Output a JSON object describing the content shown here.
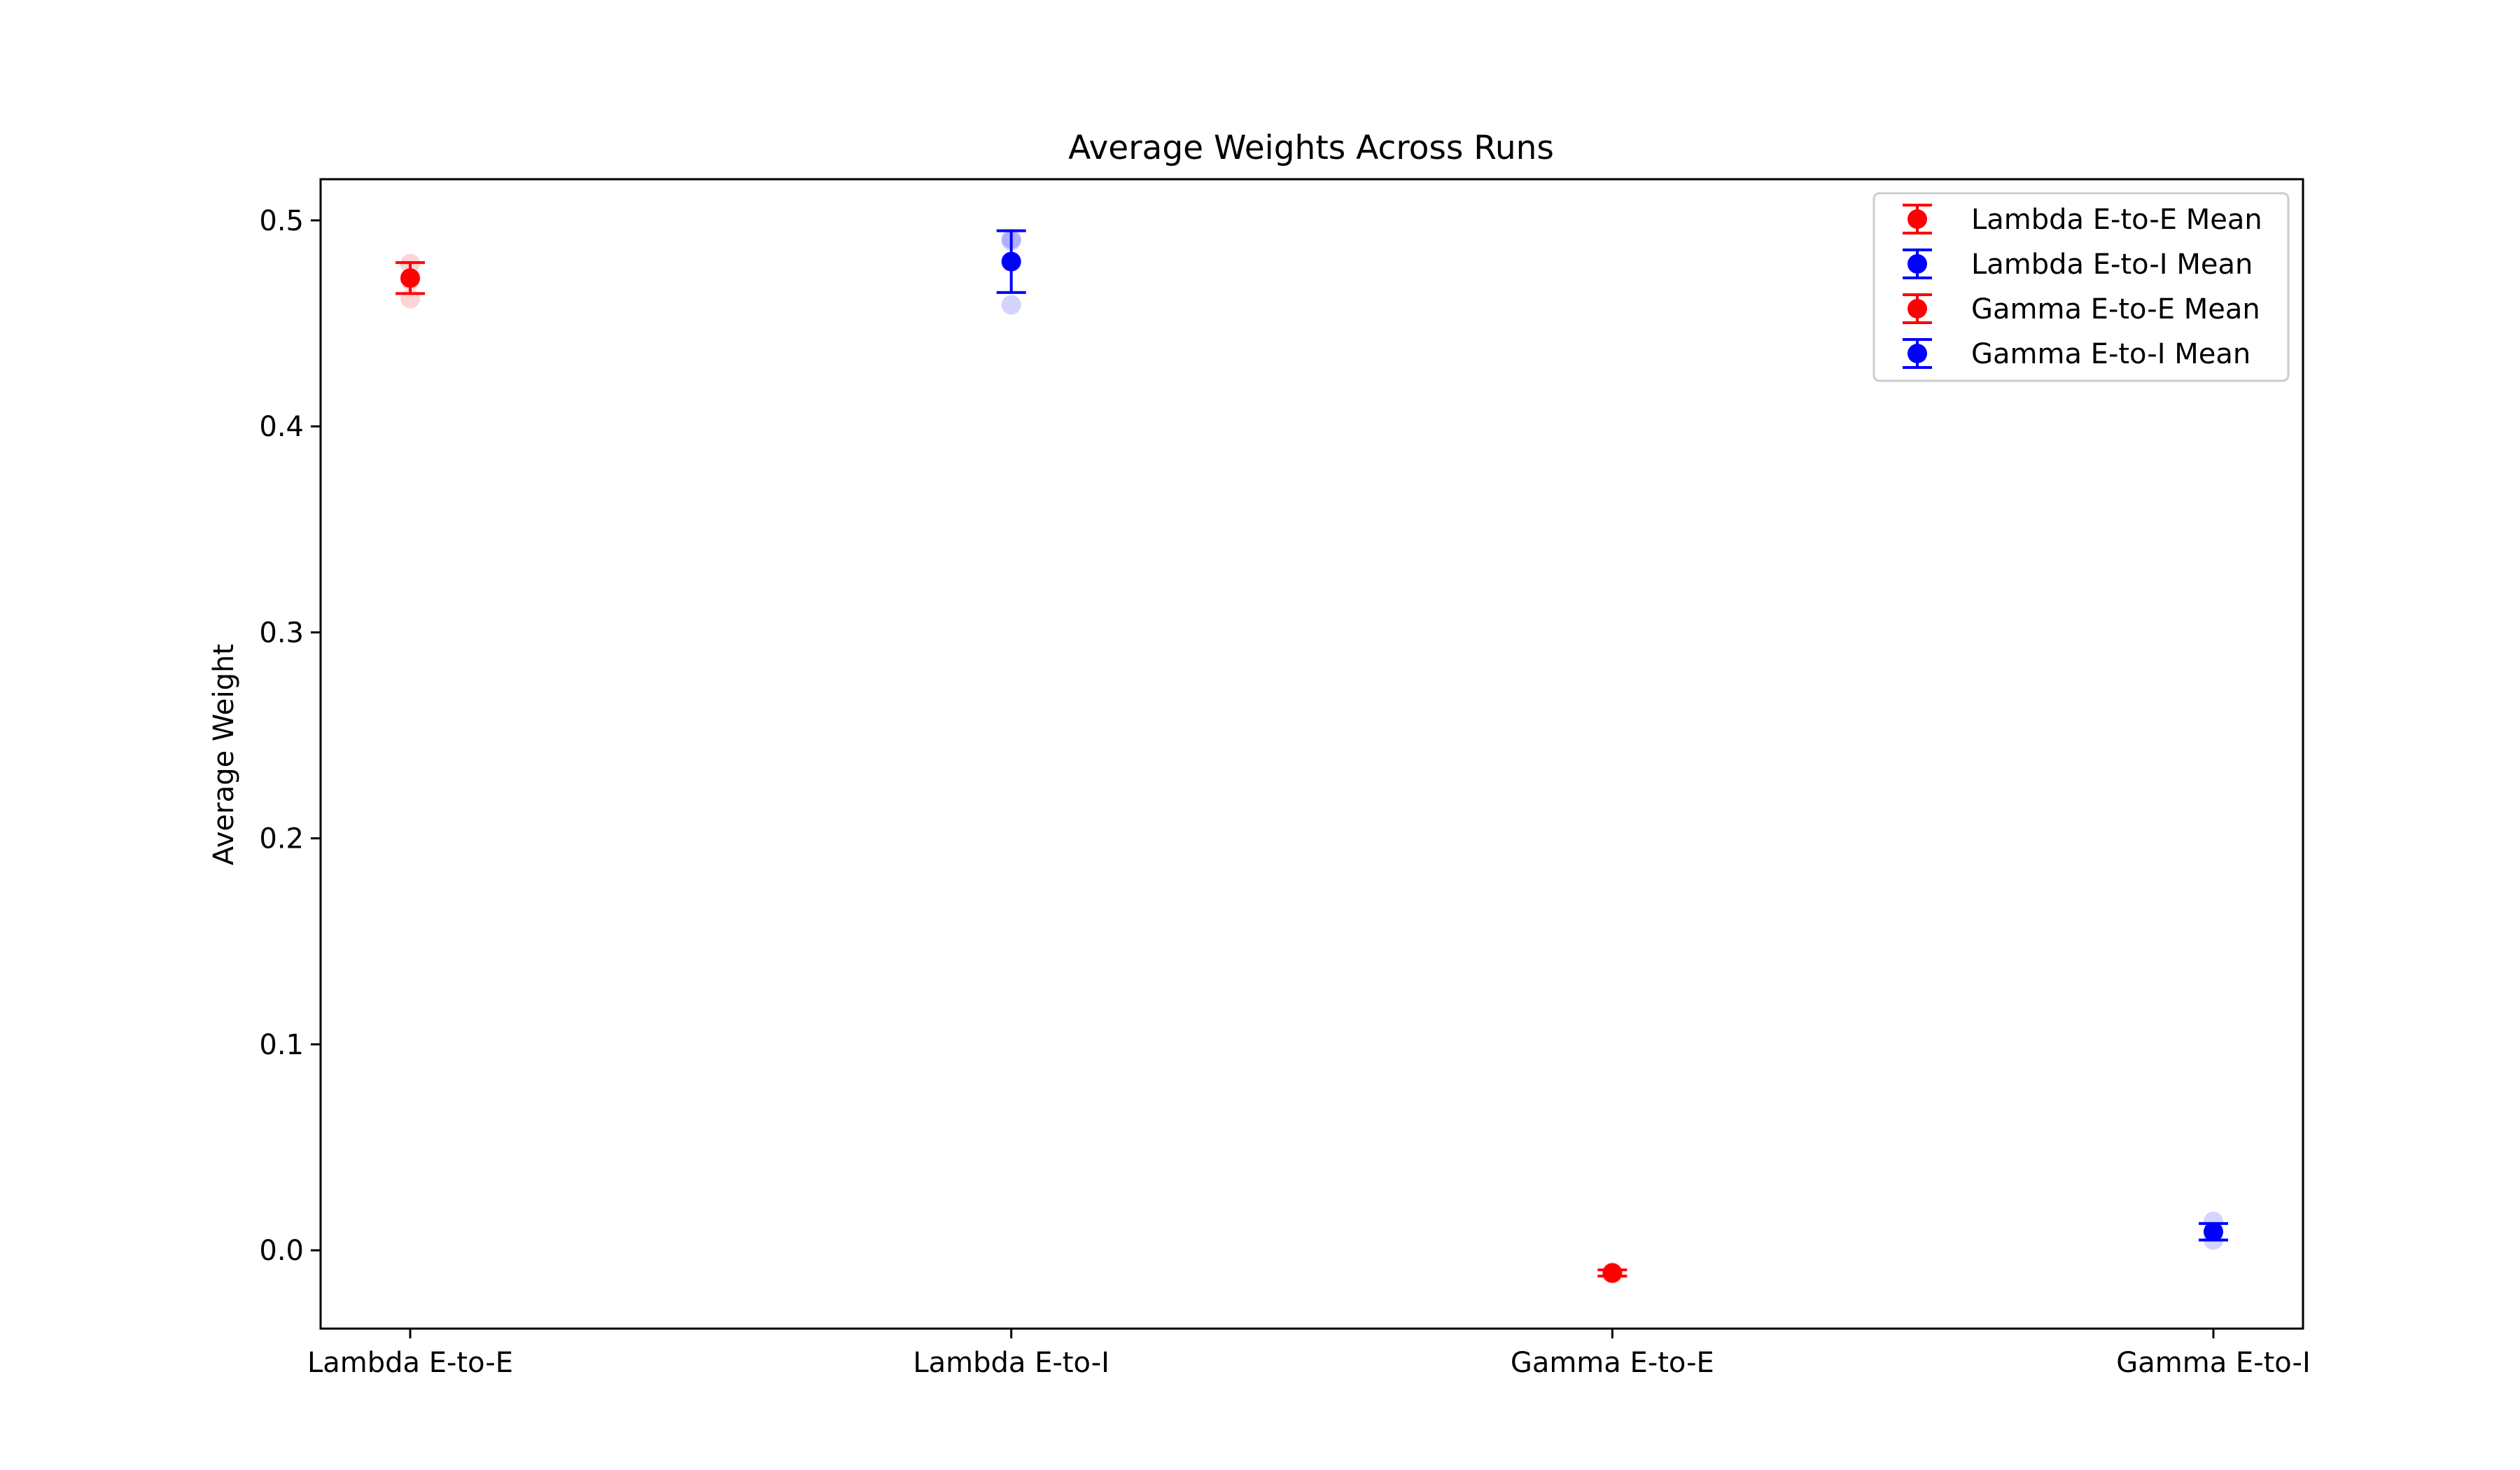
{
  "chart_data": {
    "type": "scatter",
    "title": "Average Weights Across Runs",
    "xlabel": "",
    "ylabel": "Average Weight",
    "categories": [
      "Lambda E-to-E",
      "Lambda E-to-I",
      "Gamma E-to-E",
      "Gamma E-to-I"
    ],
    "yticks": [
      "0.0",
      "0.1",
      "0.2",
      "0.3",
      "0.4",
      "0.5"
    ],
    "ylim": [
      -0.038,
      0.52
    ],
    "grid": false,
    "legend_position": "top-right",
    "series": [
      {
        "name": "Lambda E-to-E Mean",
        "color": "#ff0000",
        "category": "Lambda E-to-E",
        "mean": 0.472,
        "error": 0.0075,
        "runs": [
          0.479,
          0.471,
          0.462
        ]
      },
      {
        "name": "Lambda E-to-I Mean",
        "color": "#0000ff",
        "category": "Lambda E-to-I",
        "mean": 0.48,
        "error": 0.015,
        "runs": [
          0.49,
          0.491,
          0.459
        ]
      },
      {
        "name": "Gamma E-to-E Mean",
        "color": "#ff0000",
        "category": "Gamma E-to-E",
        "mean": -0.011,
        "error": 0.0015,
        "runs": [
          -0.0105,
          -0.0115,
          -0.011
        ]
      },
      {
        "name": "Gamma E-to-I Mean",
        "color": "#0000ff",
        "category": "Gamma E-to-I",
        "mean": 0.009,
        "error": 0.004,
        "runs": [
          0.014,
          0.009,
          0.005
        ]
      }
    ]
  }
}
